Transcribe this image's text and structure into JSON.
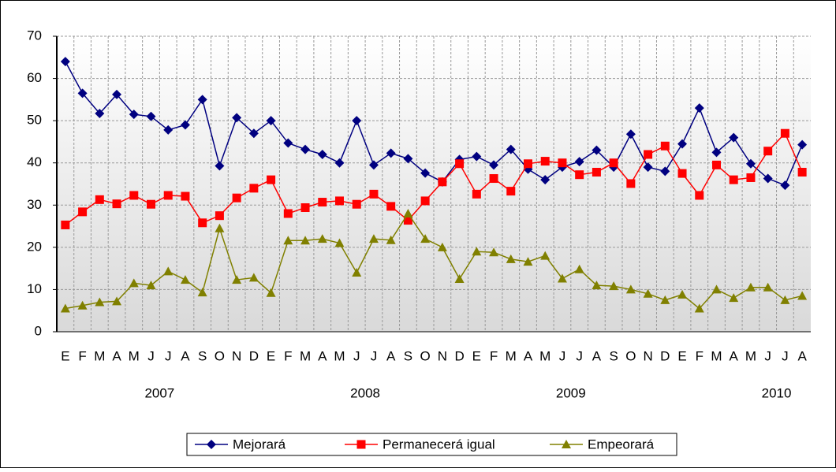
{
  "chart_data": {
    "type": "line",
    "categories": [
      "E",
      "F",
      "M",
      "A",
      "M",
      "J",
      "J",
      "A",
      "S",
      "O",
      "N",
      "D",
      "E",
      "F",
      "M",
      "A",
      "M",
      "J",
      "J",
      "A",
      "S",
      "O",
      "N",
      "D",
      "E",
      "F",
      "M",
      "A",
      "M",
      "J",
      "J",
      "A",
      "S",
      "O",
      "N",
      "D",
      "E",
      "F",
      "M",
      "A",
      "M",
      "J",
      "J",
      "A"
    ],
    "year_labels": [
      "2007",
      "2008",
      "2009",
      "2010"
    ],
    "series": [
      {
        "name": "Mejorará",
        "color": "#000080",
        "marker": "diamond",
        "values": [
          64,
          56.5,
          51.7,
          56.2,
          51.5,
          51,
          47.8,
          49,
          55,
          39.3,
          50.7,
          47,
          50,
          44.7,
          43.2,
          42,
          40,
          50,
          39.5,
          42.3,
          41,
          37.6,
          35.5,
          40.8,
          41.5,
          39.5,
          43.2,
          38.5,
          36,
          39,
          40.3,
          43,
          39,
          46.8,
          39,
          38,
          44.5,
          53,
          42.5,
          46,
          39.8,
          36.3,
          34.7,
          44.3
        ]
      },
      {
        "name": "Permanecerá igual",
        "color": "#ff0000",
        "marker": "square",
        "values": [
          25.3,
          28.4,
          31.3,
          30.3,
          32.3,
          30.2,
          32.3,
          32.1,
          25.8,
          27.5,
          31.7,
          34,
          36,
          28,
          29.4,
          30.7,
          31,
          30.2,
          32.6,
          29.7,
          26.4,
          31,
          35.5,
          39.8,
          32.6,
          36.3,
          33.3,
          39.8,
          40.4,
          40,
          37.2,
          37.8,
          40,
          35.1,
          42,
          44,
          37.5,
          32.3,
          39.5,
          36,
          36.5,
          42.8,
          47,
          37.8
        ]
      },
      {
        "name": "Empeorará",
        "color": "#808000",
        "marker": "triangle",
        "values": [
          5.5,
          6.2,
          7,
          7.2,
          11.5,
          11,
          14.3,
          12.3,
          9.3,
          24.5,
          12.3,
          12.8,
          9.2,
          21.6,
          21.6,
          22,
          21,
          14,
          22,
          21.7,
          28,
          22,
          20,
          12.5,
          19,
          18.8,
          17.2,
          16.6,
          18,
          12.6,
          14.8,
          11,
          10.8,
          10,
          9,
          7.5,
          8.8,
          5.5,
          10,
          8,
          10.5,
          10.5,
          7.5,
          8.5
        ]
      }
    ],
    "ylim": [
      0,
      70
    ],
    "yticks": [
      0,
      10,
      20,
      30,
      40,
      50,
      60,
      70
    ],
    "grid": true,
    "legend": "bottom"
  }
}
